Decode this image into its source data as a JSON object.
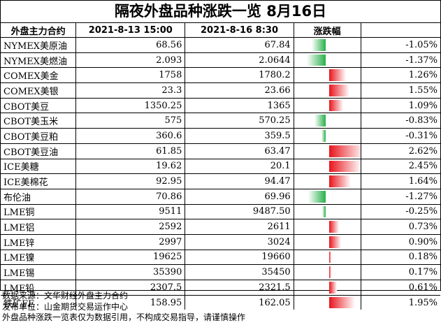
{
  "title": "隔夜外盘品种涨跌一览 8月16日",
  "headers": [
    "外盘主力合约",
    "2021-8-13 15:00",
    "2021-8-16 8:30",
    "涨跌幅"
  ],
  "rows": [
    {
      "name": "NYMEX美原油",
      "prev": "68.56",
      "curr": "67.84",
      "change": -1.05,
      "change_text": "-1.05%"
    },
    {
      "name": "NYMEX美燃油",
      "prev": "2.093",
      "curr": "2.0644",
      "change": -1.37,
      "change_text": "-1.37%"
    },
    {
      "name": "COMEX美金",
      "prev": "1758",
      "curr": "1780.2",
      "change": 1.26,
      "change_text": "1.26%"
    },
    {
      "name": "COMEX美银",
      "prev": "23.3",
      "curr": "23.66",
      "change": 1.55,
      "change_text": "1.55%"
    },
    {
      "name": "CBOT美豆",
      "prev": "1350.25",
      "curr": "1365",
      "change": 1.09,
      "change_text": "1.09%"
    },
    {
      "name": "CBOT美玉米",
      "prev": "575",
      "curr": "570.25",
      "change": -0.83,
      "change_text": "-0.83%"
    },
    {
      "name": "CBOT美豆粕",
      "prev": "360.6",
      "curr": "359.5",
      "change": -0.31,
      "change_text": "-0.31%"
    },
    {
      "name": "CBOT美豆油",
      "prev": "61.85",
      "curr": "63.47",
      "change": 2.62,
      "change_text": "2.62%"
    },
    {
      "name": "ICE美糖",
      "prev": "19.62",
      "curr": "20.1",
      "change": 2.45,
      "change_text": "2.45%"
    },
    {
      "name": "ICE美棉花",
      "prev": "92.95",
      "curr": "94.47",
      "change": 1.64,
      "change_text": "1.64%"
    },
    {
      "name": "布伦油",
      "prev": "70.86",
      "curr": "69.96",
      "change": -1.27,
      "change_text": "-1.27%"
    },
    {
      "name": "LME铜",
      "prev": "9511",
      "curr": "9487.50",
      "change": -0.25,
      "change_text": "-0.25%"
    },
    {
      "name": "LME铝",
      "prev": "2592",
      "curr": "2611",
      "change": 0.73,
      "change_text": "0.73%"
    },
    {
      "name": "LME锌",
      "prev": "2997",
      "curr": "3024",
      "change": 0.9,
      "change_text": "0.90%"
    },
    {
      "name": "LME镍",
      "prev": "19625",
      "curr": "19660",
      "change": 0.18,
      "change_text": "0.18%"
    },
    {
      "name": "LME锡",
      "prev": "35390",
      "curr": "35450",
      "change": 0.17,
      "change_text": "0.17%"
    },
    {
      "name": "LME铅",
      "prev": "2307.5",
      "curr": "2321.5",
      "change": 0.61,
      "change_text": "0.61%"
    },
    {
      "name": "铁矿FE",
      "prev": "158.95",
      "curr": "162.05",
      "change": 1.95,
      "change_text": "1.95%"
    }
  ],
  "footer": [
    "数据来源：文华财经外盘主力合约",
    "发布单位：山金期货交易运作中心",
    "外盘品种涨跌一览表仅为数据引用，不构成交易指导，请谨慎操作"
  ],
  "colors": {
    "up": "#e8141c",
    "down": "#28b04a"
  }
}
